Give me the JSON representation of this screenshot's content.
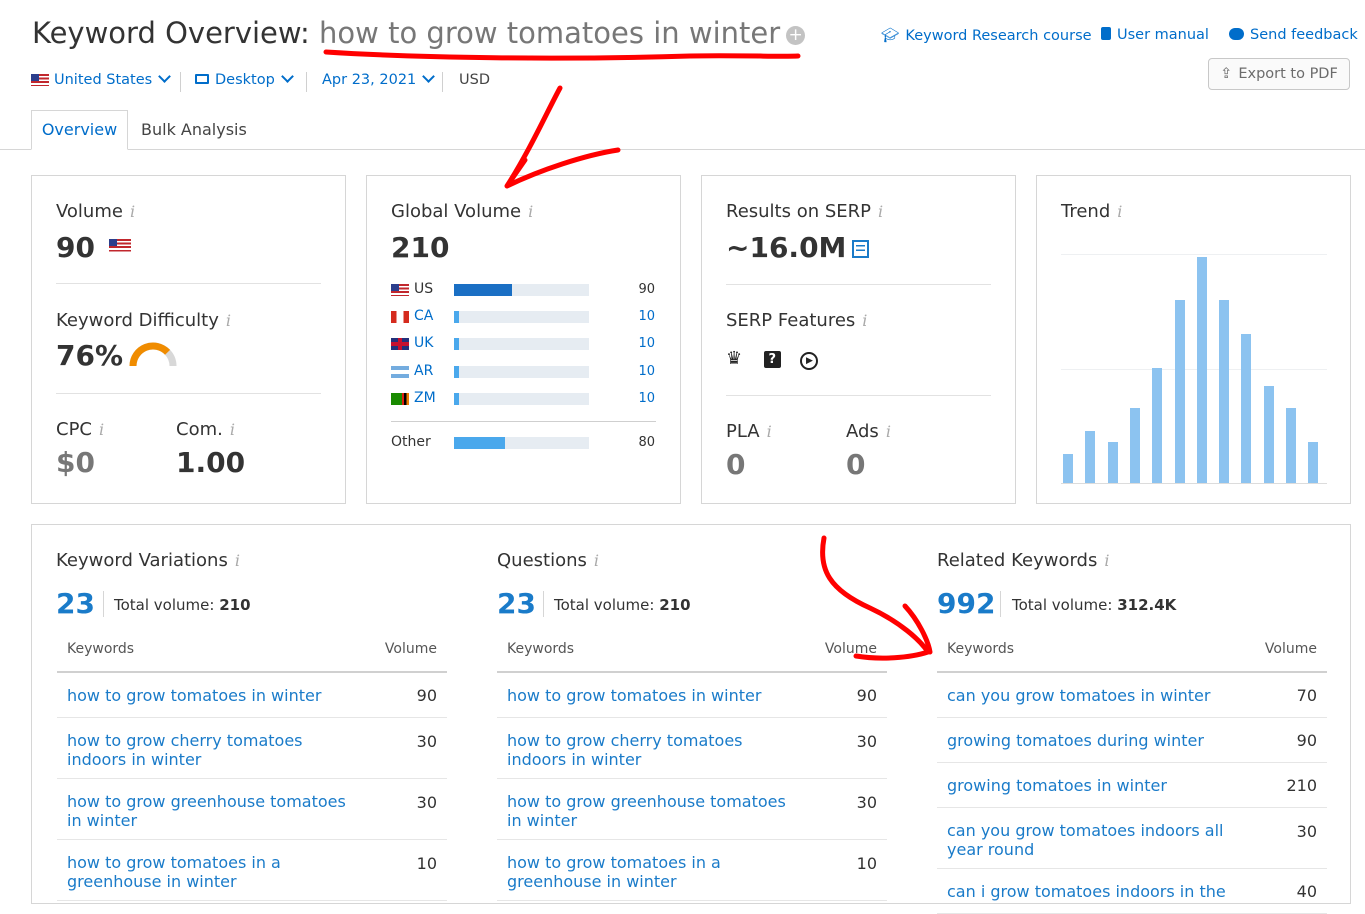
{
  "header": {
    "title_prefix": "Keyword Overview:",
    "keyword": "how to grow tomatoes in winter",
    "links": [
      "Keyword Research course",
      "User manual",
      "Send feedback"
    ],
    "export_label": "Export to PDF"
  },
  "filters": {
    "country": "United States",
    "device": "Desktop",
    "date": "Apr 23, 2021",
    "currency": "USD"
  },
  "tabs": [
    "Overview",
    "Bulk Analysis"
  ],
  "volume": {
    "label": "Volume",
    "value": "90"
  },
  "kd": {
    "label": "Keyword Difficulty",
    "value": "76%",
    "percent": 76
  },
  "cpc": {
    "label": "CPC",
    "value": "$0"
  },
  "com": {
    "label": "Com.",
    "value": "1.00"
  },
  "global_volume": {
    "label": "Global Volume",
    "value": "210",
    "rows": [
      {
        "code": "US",
        "value": "90",
        "fraction": 0.43
      },
      {
        "code": "CA",
        "value": "10",
        "fraction": 0.04
      },
      {
        "code": "UK",
        "value": "10",
        "fraction": 0.04
      },
      {
        "code": "AR",
        "value": "10",
        "fraction": 0.04
      },
      {
        "code": "ZM",
        "value": "10",
        "fraction": 0.04
      }
    ],
    "other": {
      "label": "Other",
      "value": "80",
      "fraction": 0.38
    }
  },
  "serp": {
    "results_label": "Results on SERP",
    "results_value": "~16.0M",
    "features_label": "SERP Features",
    "feature_icons": [
      "crown-icon",
      "question-icon",
      "play-icon"
    ],
    "pla_label": "PLA",
    "pla_value": "0",
    "ads_label": "Ads",
    "ads_value": "0"
  },
  "trend": {
    "label": "Trend",
    "values": [
      0.13,
      0.23,
      0.18,
      0.33,
      0.51,
      0.81,
      1.0,
      0.81,
      0.66,
      0.43,
      0.33,
      0.18
    ]
  },
  "variations": {
    "title": "Keyword Variations",
    "count": "23",
    "total_label": "Total volume:",
    "total_value": "210",
    "col_keywords": "Keywords",
    "col_volume": "Volume",
    "rows": [
      {
        "keyword": "how to grow tomatoes in winter",
        "volume": "90"
      },
      {
        "keyword": "how to grow cherry tomatoes indoors in winter",
        "volume": "30"
      },
      {
        "keyword": "how to grow greenhouse tomatoes in winter",
        "volume": "30"
      },
      {
        "keyword": "how to grow tomatoes in a greenhouse in winter",
        "volume": "10"
      }
    ]
  },
  "questions": {
    "title": "Questions",
    "count": "23",
    "total_label": "Total volume:",
    "total_value": "210",
    "col_keywords": "Keywords",
    "col_volume": "Volume",
    "rows": [
      {
        "keyword": "how to grow tomatoes in winter",
        "volume": "90"
      },
      {
        "keyword": "how to grow cherry tomatoes indoors in winter",
        "volume": "30"
      },
      {
        "keyword": "how to grow greenhouse tomatoes in winter",
        "volume": "30"
      },
      {
        "keyword": "how to grow tomatoes in a greenhouse in winter",
        "volume": "10"
      }
    ]
  },
  "related": {
    "title": "Related Keywords",
    "count": "992",
    "total_label": "Total volume:",
    "total_value": "312.4K",
    "col_keywords": "Keywords",
    "col_volume": "Volume",
    "rows": [
      {
        "keyword": "can you grow tomatoes in winter",
        "volume": "70"
      },
      {
        "keyword": "growing tomatoes during winter",
        "volume": "90"
      },
      {
        "keyword": "growing tomatoes in winter",
        "volume": "210"
      },
      {
        "keyword": "can you grow tomatoes indoors all year round",
        "volume": "30"
      },
      {
        "keyword": "can i grow tomatoes indoors in the",
        "volume": "40"
      }
    ]
  },
  "colors": {
    "accent": "#006dca",
    "bar_dark": "#1a6fc4",
    "bar_light": "#4aa8ec",
    "kd_orange": "#f08c00",
    "annotation": "#ff0000"
  }
}
